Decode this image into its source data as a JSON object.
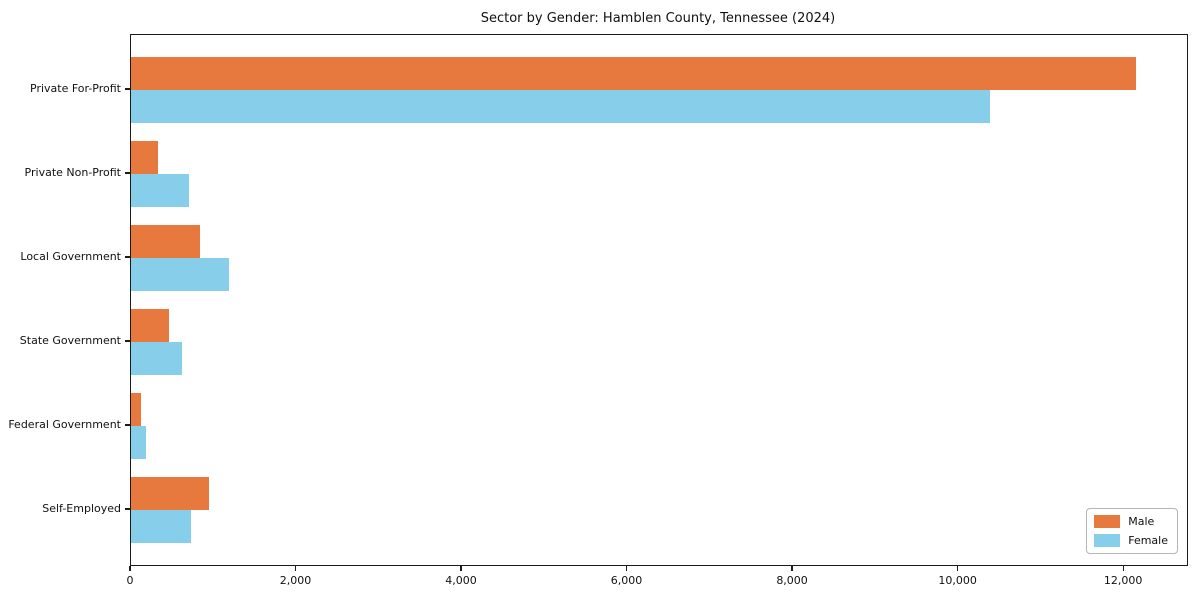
{
  "chart_data": {
    "type": "bar",
    "orientation": "horizontal",
    "title": "Sector by Gender: Hamblen County, Tennessee (2024)",
    "categories": [
      "Private For-Profit",
      "Private Non-Profit",
      "Local Government",
      "State Government",
      "Federal Government",
      "Self-Employed"
    ],
    "series": [
      {
        "name": "Male",
        "color": "#e8793e",
        "values": [
          12140,
          330,
          835,
          465,
          125,
          940
        ]
      },
      {
        "name": "Female",
        "color": "#87ceeb",
        "values": [
          10380,
          705,
          1190,
          615,
          180,
          730
        ]
      }
    ],
    "xlim": [
      0,
      12760
    ],
    "xticks": [
      0,
      2000,
      4000,
      6000,
      8000,
      10000,
      12000
    ],
    "xtick_format": "thousands-comma",
    "xlabel": "",
    "ylabel": "",
    "legend_position": "lower right",
    "grid": false,
    "background_color": "#ffffff",
    "spine_color": "#1b1b1b"
  }
}
